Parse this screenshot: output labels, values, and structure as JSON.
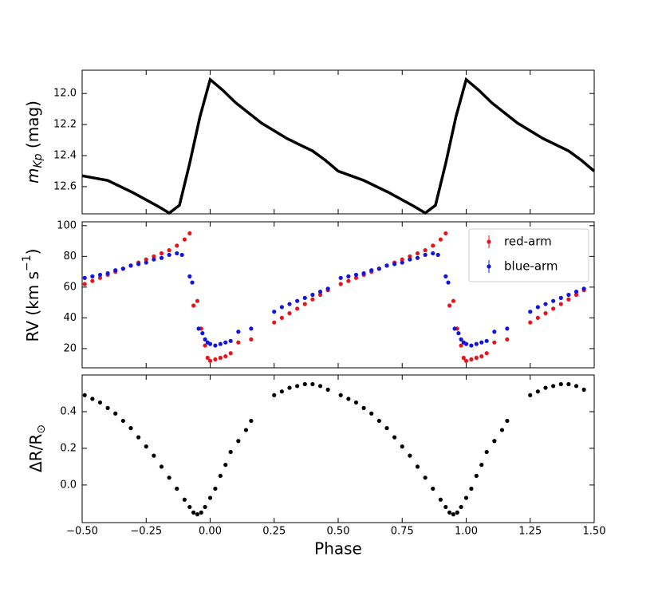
{
  "chart_data": [
    {
      "type": "line",
      "color": "#000000",
      "y_label": [
        "m",
        "Kp",
        " (mag)"
      ],
      "xlim": [
        -0.5,
        1.5
      ],
      "ylim": [
        12.775,
        11.85
      ],
      "yticks": [
        {
          "value": 12.0,
          "label": "12.0"
        },
        {
          "value": 12.2,
          "label": "12.2"
        },
        {
          "value": 12.4,
          "label": "12.4"
        },
        {
          "value": 12.6,
          "label": "12.6"
        }
      ],
      "x": [
        -0.5,
        -0.4,
        -0.3,
        -0.2,
        -0.16,
        -0.12,
        -0.08,
        -0.04,
        0.0,
        0.05,
        0.1,
        0.2,
        0.3,
        0.4,
        0.45,
        0.5,
        0.55,
        0.6,
        0.7,
        0.8,
        0.84,
        0.88,
        0.92,
        0.96,
        1.0,
        1.05,
        1.1,
        1.2,
        1.3,
        1.4,
        1.45,
        1.5
      ],
      "values": [
        12.53,
        12.56,
        12.64,
        12.73,
        12.77,
        12.72,
        12.45,
        12.15,
        11.91,
        11.98,
        12.06,
        12.19,
        12.29,
        12.37,
        12.43,
        12.5,
        12.53,
        12.56,
        12.64,
        12.73,
        12.77,
        12.72,
        12.45,
        12.15,
        11.91,
        11.98,
        12.06,
        12.19,
        12.29,
        12.37,
        12.43,
        12.5
      ]
    },
    {
      "type": "scatter",
      "y_label": [
        "RV (km s",
        "−1",
        ")"
      ],
      "xlim": [
        -0.5,
        1.5
      ],
      "ylim": [
        7.5,
        102.5
      ],
      "yticks": [
        20,
        40,
        60,
        80,
        100
      ],
      "legend": "upper right",
      "series": [
        {
          "name": "red-arm",
          "color": "#e8141b",
          "x": [
            -0.49,
            -0.46,
            -0.43,
            -0.4,
            -0.37,
            -0.34,
            -0.31,
            -0.28,
            -0.25,
            -0.22,
            -0.19,
            -0.16,
            -0.13,
            -0.1,
            -0.08,
            -0.065,
            -0.05,
            -0.035,
            -0.02,
            -0.01,
            0.0,
            0.02,
            0.04,
            0.06,
            0.08,
            0.11,
            0.16,
            0.25,
            0.28,
            0.31,
            0.34,
            0.37,
            0.4,
            0.43,
            0.46,
            0.51,
            0.54,
            0.57,
            0.6,
            0.63,
            0.66,
            0.69,
            0.72,
            0.75,
            0.78,
            0.81,
            0.84,
            0.87,
            0.9,
            0.92,
            0.935,
            0.95,
            0.965,
            0.98,
            0.99,
            1.0,
            1.02,
            1.04,
            1.06,
            1.08,
            1.11,
            1.16,
            1.25,
            1.28,
            1.31,
            1.34,
            1.37,
            1.4,
            1.43,
            1.46
          ],
          "values": [
            62,
            64,
            66,
            68,
            70,
            72,
            74,
            76,
            78,
            80,
            82,
            84,
            87,
            91,
            95,
            48,
            51,
            33,
            22,
            14,
            12,
            13,
            14,
            15,
            17,
            24,
            26,
            37,
            40,
            43,
            46,
            49,
            52,
            55,
            58,
            62,
            64,
            66,
            68,
            70,
            72,
            74,
            76,
            78,
            80,
            82,
            84,
            87,
            91,
            95,
            48,
            51,
            33,
            22,
            14,
            12,
            13,
            14,
            15,
            17,
            24,
            26,
            37,
            40,
            43,
            46,
            49,
            52,
            55,
            58
          ]
        },
        {
          "name": "blue-arm",
          "color": "#1414e0",
          "x": [
            -0.49,
            -0.46,
            -0.43,
            -0.4,
            -0.37,
            -0.34,
            -0.31,
            -0.28,
            -0.25,
            -0.22,
            -0.19,
            -0.16,
            -0.13,
            -0.11,
            -0.08,
            -0.07,
            -0.045,
            -0.03,
            -0.02,
            -0.01,
            0.0,
            0.02,
            0.04,
            0.06,
            0.08,
            0.11,
            0.16,
            0.25,
            0.28,
            0.31,
            0.34,
            0.37,
            0.4,
            0.43,
            0.46,
            0.51,
            0.54,
            0.57,
            0.6,
            0.63,
            0.66,
            0.69,
            0.72,
            0.75,
            0.78,
            0.81,
            0.84,
            0.87,
            0.89,
            0.92,
            0.93,
            0.955,
            0.97,
            0.98,
            0.99,
            1.0,
            1.02,
            1.04,
            1.06,
            1.08,
            1.11,
            1.16,
            1.25,
            1.28,
            1.31,
            1.34,
            1.37,
            1.4,
            1.43,
            1.46
          ],
          "values": [
            66,
            67,
            68,
            69,
            71,
            72,
            74,
            75,
            76,
            78,
            79,
            81,
            82,
            81,
            67,
            63,
            33,
            30,
            26,
            24,
            23,
            22,
            23,
            24,
            25,
            31,
            33,
            44,
            47,
            49,
            51,
            53,
            55,
            57,
            59,
            66,
            67,
            68,
            69,
            71,
            72,
            74,
            75,
            76,
            78,
            79,
            81,
            82,
            81,
            67,
            63,
            33,
            30,
            26,
            24,
            23,
            22,
            23,
            24,
            25,
            31,
            33,
            44,
            47,
            49,
            51,
            53,
            55,
            57,
            59
          ]
        }
      ]
    },
    {
      "type": "scatter",
      "color": "#000000",
      "y_label": [
        "ΔR/R",
        "⊙"
      ],
      "x_label": "Phase",
      "xlim": [
        -0.5,
        1.5
      ],
      "ylim": [
        -0.205,
        0.6
      ],
      "xticks": [
        {
          "value": -0.5,
          "label": "−0.50"
        },
        {
          "value": -0.25,
          "label": "−0.25"
        },
        {
          "value": 0.0,
          "label": "0.00"
        },
        {
          "value": 0.25,
          "label": "0.25"
        },
        {
          "value": 0.5,
          "label": "0.50"
        },
        {
          "value": 0.75,
          "label": "0.75"
        },
        {
          "value": 1.0,
          "label": "1.00"
        },
        {
          "value": 1.25,
          "label": "1.25"
        },
        {
          "value": 1.5,
          "label": "1.50"
        }
      ],
      "yticks": [
        {
          "value": 0.0,
          "label": "0.0"
        },
        {
          "value": 0.2,
          "label": "0.2"
        },
        {
          "value": 0.4,
          "label": "0.4"
        }
      ],
      "x": [
        -0.49,
        -0.46,
        -0.43,
        -0.4,
        -0.37,
        -0.34,
        -0.31,
        -0.28,
        -0.25,
        -0.22,
        -0.19,
        -0.16,
        -0.13,
        -0.1,
        -0.08,
        -0.065,
        -0.05,
        -0.035,
        -0.02,
        0.0,
        0.02,
        0.04,
        0.06,
        0.08,
        0.11,
        0.14,
        0.16,
        0.25,
        0.28,
        0.31,
        0.34,
        0.37,
        0.4,
        0.43,
        0.46,
        0.51,
        0.54,
        0.57,
        0.6,
        0.63,
        0.66,
        0.69,
        0.72,
        0.75,
        0.78,
        0.81,
        0.84,
        0.87,
        0.9,
        0.92,
        0.935,
        0.95,
        0.965,
        0.98,
        1.0,
        1.02,
        1.04,
        1.06,
        1.08,
        1.11,
        1.14,
        1.16,
        1.25,
        1.28,
        1.31,
        1.34,
        1.37,
        1.4,
        1.43,
        1.46
      ],
      "values": [
        0.49,
        0.47,
        0.45,
        0.42,
        0.39,
        0.35,
        0.31,
        0.26,
        0.21,
        0.16,
        0.1,
        0.04,
        -0.02,
        -0.08,
        -0.12,
        -0.15,
        -0.16,
        -0.15,
        -0.12,
        -0.07,
        -0.02,
        0.05,
        0.11,
        0.18,
        0.24,
        0.3,
        0.35,
        0.49,
        0.51,
        0.53,
        0.54,
        0.55,
        0.55,
        0.54,
        0.52,
        0.49,
        0.47,
        0.45,
        0.42,
        0.39,
        0.35,
        0.31,
        0.26,
        0.21,
        0.16,
        0.1,
        0.04,
        -0.02,
        -0.08,
        -0.12,
        -0.15,
        -0.16,
        -0.15,
        -0.12,
        -0.07,
        -0.02,
        0.05,
        0.11,
        0.18,
        0.24,
        0.3,
        0.35,
        0.49,
        0.51,
        0.53,
        0.54,
        0.55,
        0.55,
        0.54,
        0.52
      ]
    }
  ]
}
